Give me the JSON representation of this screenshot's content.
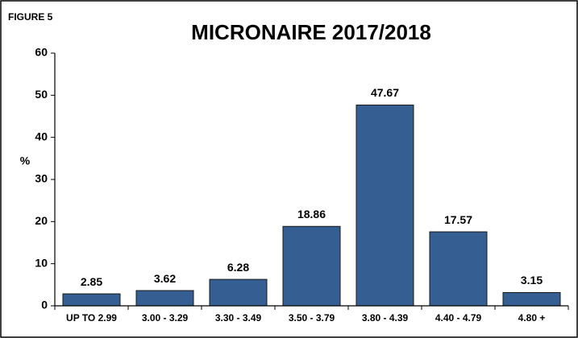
{
  "chart_data": {
    "type": "bar",
    "label": "FIGURE 5",
    "title": "MICRONAIRE 2017/2018",
    "y_label": "%",
    "categories": [
      "UP TO 2.99",
      "3.00 - 3.29",
      "3.30 - 3.49",
      "3.50 - 3.79",
      "3.80 - 4.39",
      "4.40 - 4.79",
      "4.80 +"
    ],
    "values": [
      2.85,
      3.62,
      6.28,
      18.86,
      47.67,
      17.57,
      3.15
    ],
    "color": "#355f92",
    "ylim": [
      0,
      60
    ],
    "yticks": [
      0,
      10,
      20,
      30,
      40,
      50,
      60
    ],
    "grid": false,
    "data_labels": true
  }
}
